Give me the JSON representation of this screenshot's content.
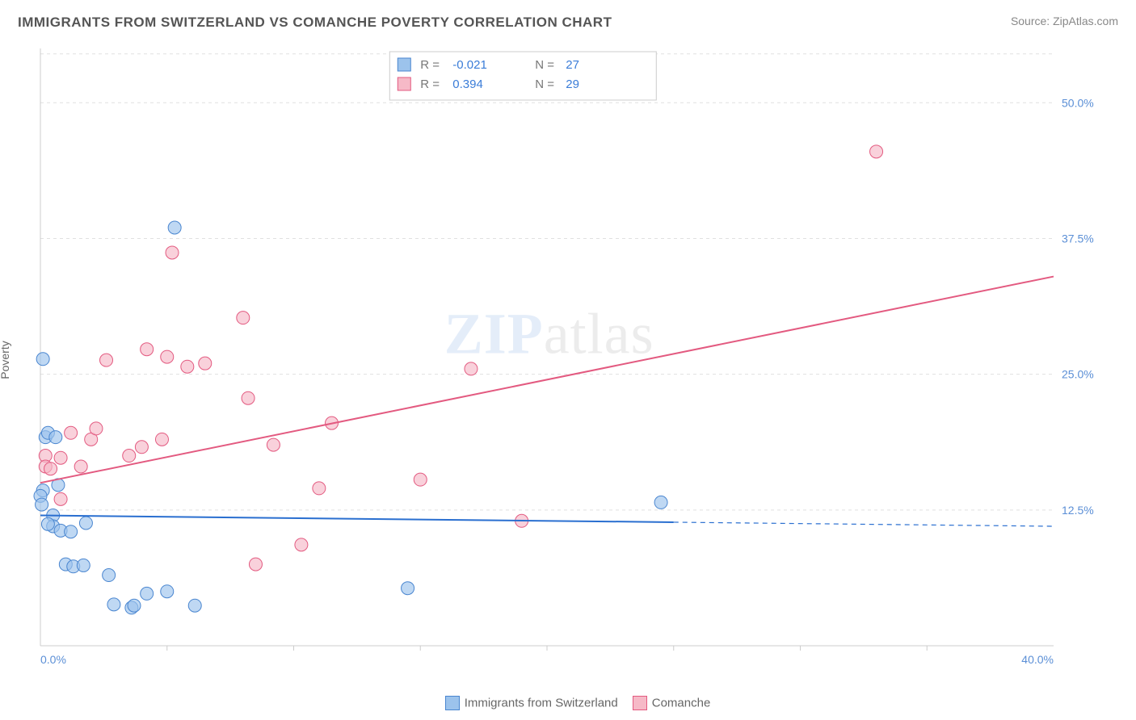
{
  "title": "IMMIGRANTS FROM SWITZERLAND VS COMANCHE POVERTY CORRELATION CHART",
  "source": "Source: ZipAtlas.com",
  "ylabel": "Poverty",
  "watermark": {
    "left": "ZIP",
    "right": "atlas"
  },
  "chart": {
    "type": "scatter",
    "xlim": [
      0.0,
      40.0
    ],
    "ylim": [
      0.0,
      55.0
    ],
    "x_ticks": [
      0.0,
      40.0
    ],
    "x_tick_labels": [
      "0.0%",
      "40.0%"
    ],
    "x_minor_ticks": [
      5.0,
      10.0,
      15.0,
      20.0,
      25.0,
      30.0,
      35.0
    ],
    "y_ticks": [
      12.5,
      25.0,
      37.5,
      50.0
    ],
    "y_tick_labels": [
      "12.5%",
      "25.0%",
      "37.5%",
      "50.0%"
    ],
    "plot_bg": "#ffffff",
    "grid_color": "#e0e0e0",
    "axis_color": "#cccccc",
    "tick_label_color": "#5b8fd6",
    "marker_radius": 8,
    "marker_opacity": 0.65,
    "series": [
      {
        "id": "a",
        "label": "Immigrants from Switzerland",
        "fill": "#9cc3ec",
        "stroke": "#4a86d0",
        "line_color": "#2a6fd0",
        "line_width": 2,
        "trend_y_start": 12.0,
        "trend_y_end": 11.0,
        "trend_solid_x_end": 25.0,
        "R": "-0.021",
        "N": "27",
        "points": [
          {
            "x": 0.1,
            "y": 26.4
          },
          {
            "x": 0.1,
            "y": 14.3
          },
          {
            "x": 0.0,
            "y": 13.8
          },
          {
            "x": 0.05,
            "y": 13.0
          },
          {
            "x": 0.2,
            "y": 19.2
          },
          {
            "x": 0.3,
            "y": 19.6
          },
          {
            "x": 0.6,
            "y": 19.2
          },
          {
            "x": 0.7,
            "y": 14.8
          },
          {
            "x": 0.5,
            "y": 12.0
          },
          {
            "x": 0.5,
            "y": 11.0
          },
          {
            "x": 0.3,
            "y": 11.2
          },
          {
            "x": 0.8,
            "y": 10.6
          },
          {
            "x": 1.2,
            "y": 10.5
          },
          {
            "x": 1.0,
            "y": 7.5
          },
          {
            "x": 1.3,
            "y": 7.3
          },
          {
            "x": 1.8,
            "y": 11.3
          },
          {
            "x": 1.7,
            "y": 7.4
          },
          {
            "x": 2.7,
            "y": 6.5
          },
          {
            "x": 2.9,
            "y": 3.8
          },
          {
            "x": 3.6,
            "y": 3.5
          },
          {
            "x": 3.7,
            "y": 3.7
          },
          {
            "x": 4.2,
            "y": 4.8
          },
          {
            "x": 5.0,
            "y": 5.0
          },
          {
            "x": 5.3,
            "y": 38.5
          },
          {
            "x": 6.1,
            "y": 3.7
          },
          {
            "x": 14.5,
            "y": 5.3
          },
          {
            "x": 24.5,
            "y": 13.2
          }
        ]
      },
      {
        "id": "b",
        "label": "Comanche",
        "fill": "#f6b9c7",
        "stroke": "#e35a80",
        "line_color": "#e35a80",
        "line_width": 2,
        "trend_y_start": 15.0,
        "trend_y_end": 34.0,
        "trend_solid_x_end": 40.0,
        "R": "0.394",
        "N": "29",
        "points": [
          {
            "x": 0.2,
            "y": 17.5
          },
          {
            "x": 0.2,
            "y": 16.5
          },
          {
            "x": 0.4,
            "y": 16.3
          },
          {
            "x": 0.8,
            "y": 13.5
          },
          {
            "x": 0.8,
            "y": 17.3
          },
          {
            "x": 1.2,
            "y": 19.6
          },
          {
            "x": 1.6,
            "y": 16.5
          },
          {
            "x": 2.0,
            "y": 19.0
          },
          {
            "x": 2.2,
            "y": 20.0
          },
          {
            "x": 2.6,
            "y": 26.3
          },
          {
            "x": 3.5,
            "y": 17.5
          },
          {
            "x": 4.0,
            "y": 18.3
          },
          {
            "x": 4.2,
            "y": 27.3
          },
          {
            "x": 4.8,
            "y": 19.0
          },
          {
            "x": 5.0,
            "y": 26.6
          },
          {
            "x": 5.2,
            "y": 36.2
          },
          {
            "x": 5.8,
            "y": 25.7
          },
          {
            "x": 6.5,
            "y": 26.0
          },
          {
            "x": 8.0,
            "y": 30.2
          },
          {
            "x": 8.2,
            "y": 22.8
          },
          {
            "x": 8.5,
            "y": 7.5
          },
          {
            "x": 9.2,
            "y": 18.5
          },
          {
            "x": 10.3,
            "y": 9.3
          },
          {
            "x": 11.0,
            "y": 14.5
          },
          {
            "x": 11.5,
            "y": 20.5
          },
          {
            "x": 15.0,
            "y": 15.3
          },
          {
            "x": 17.0,
            "y": 25.5
          },
          {
            "x": 19.0,
            "y": 11.5
          },
          {
            "x": 33.0,
            "y": 45.5
          }
        ]
      }
    ],
    "top_legend": {
      "bg": "#ffffff",
      "border": "#cccccc",
      "label_R": "R = ",
      "label_N": "N = ",
      "value_color": "#3b7dd8",
      "label_color": "#777777"
    }
  },
  "bottom_legend": {
    "items": [
      {
        "label": "Immigrants from Switzerland",
        "fill": "#9cc3ec",
        "stroke": "#4a86d0"
      },
      {
        "label": "Comanche",
        "fill": "#f6b9c7",
        "stroke": "#e35a80"
      }
    ]
  }
}
